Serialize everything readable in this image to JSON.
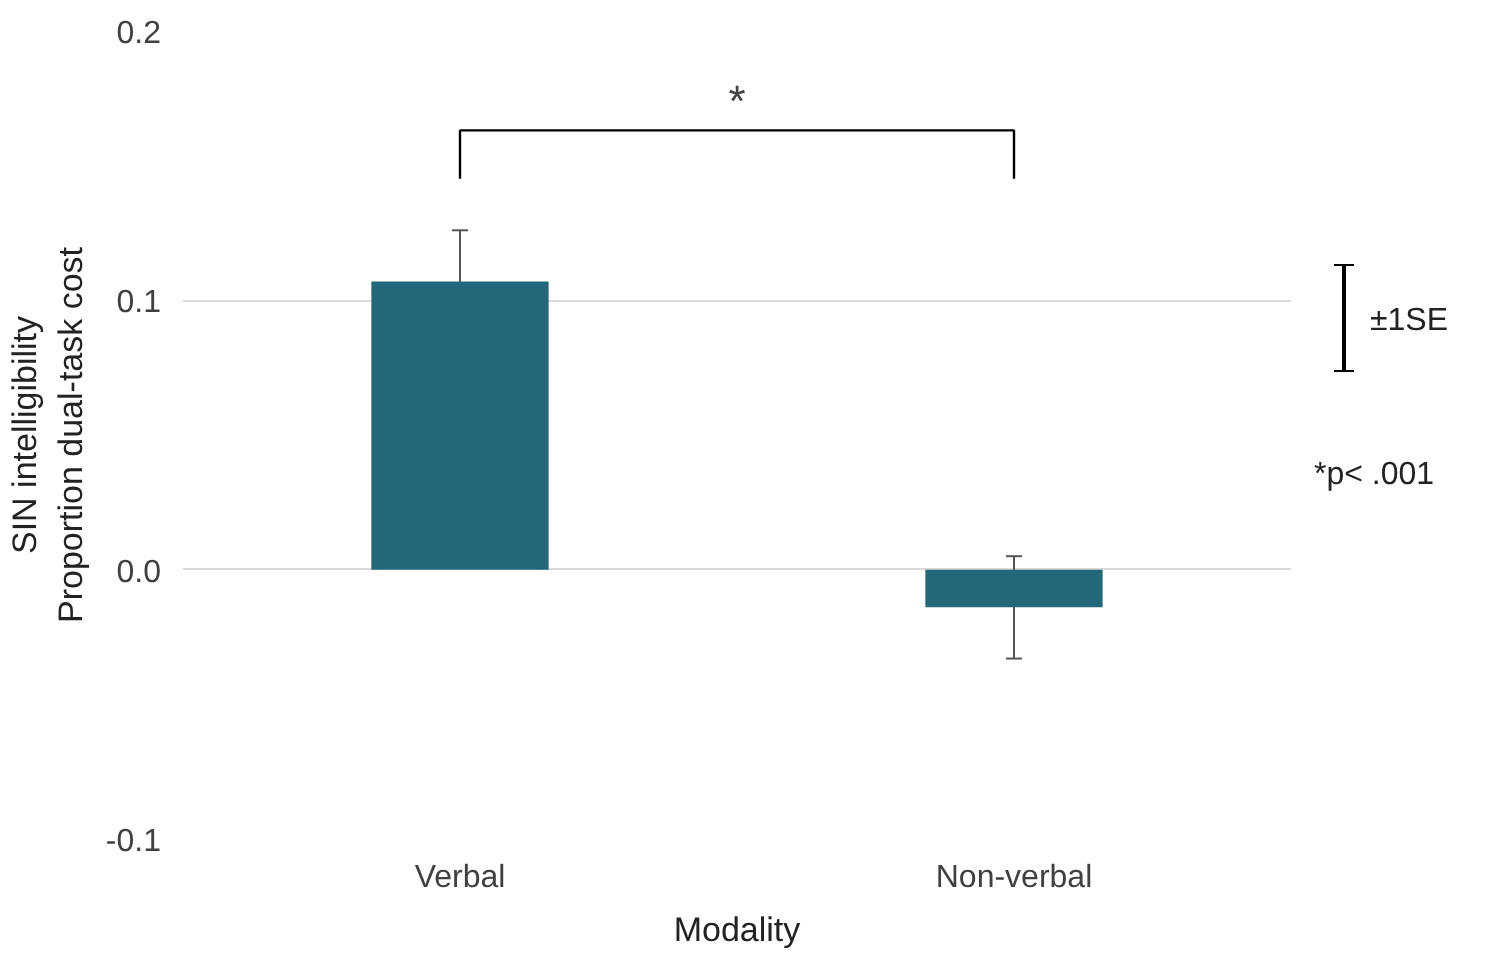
{
  "chart_data": {
    "type": "bar",
    "ylabel": "SIN intelligibility\nProportion dual-task cost",
    "xlabel": "Modality",
    "categories": [
      "Verbal",
      "Non-verbal"
    ],
    "values": [
      0.107,
      -0.014
    ],
    "errors": [
      0.019,
      0.019
    ],
    "color": "#226878",
    "ylim": [
      -0.1,
      0.2
    ],
    "yticks": [
      {
        "value": -0.1,
        "label": "-0.1"
      },
      {
        "value": 0,
        "label": "0.0"
      },
      0.1,
      0.2
    ],
    "grid": "y",
    "annotations": [
      "*",
      "±1SE",
      "*p< .001"
    ]
  }
}
